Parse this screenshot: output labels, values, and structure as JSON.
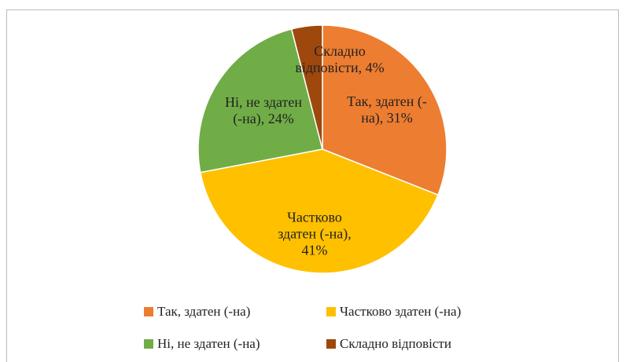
{
  "chart_data": {
    "type": "pie",
    "categories": [
      "Так, здатен (-на)",
      "Частково здатен (-на)",
      "Ні, не здатен (-на)",
      "Складно відповісти"
    ],
    "values": [
      31,
      41,
      24,
      4
    ],
    "value_labels": [
      "Так, здатен (-на), 31%",
      "Частково здатен (-на), 41%",
      "Ні, не здатен (-на), 24%",
      "Складно відповісти, 4%"
    ],
    "colors": [
      "#ED7D31",
      "#FFC000",
      "#70AD47",
      "#9E480E"
    ],
    "legend": "bottom"
  }
}
